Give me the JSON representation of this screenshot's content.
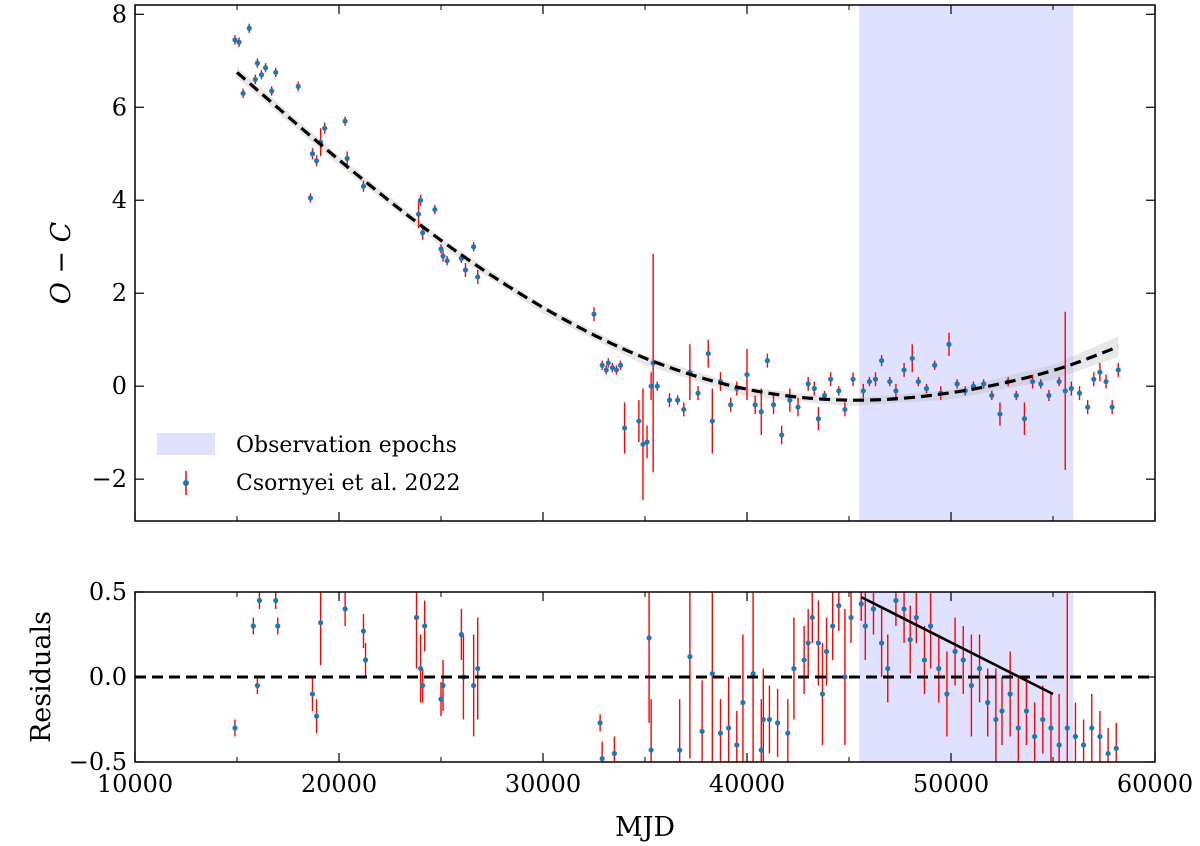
{
  "chart_data": [
    {
      "type": "scatter",
      "panel": "top",
      "xlabel": "",
      "ylabel": "O − C",
      "xlim": [
        10000,
        60000
      ],
      "ylim": [
        -2.9,
        8.2
      ],
      "xticks": [
        10000,
        20000,
        30000,
        40000,
        50000,
        60000
      ],
      "yticks": [
        -2,
        0,
        2,
        4,
        6,
        8
      ],
      "ytick_labels": [
        "−2",
        "0",
        "2",
        "4",
        "6",
        "8"
      ],
      "observation_epochs": {
        "start": 45500,
        "end": 56000,
        "color": "#e0e0ff",
        "label": "Observation epochs"
      },
      "legend": {
        "position": "lower-left",
        "entries": [
          "Observation epochs",
          "Csornyei et al. 2022"
        ]
      },
      "fit": {
        "model": "quadratic",
        "points": [
          [
            15000,
            6.75
          ],
          [
            20000,
            4.85
          ],
          [
            25000,
            3.1
          ],
          [
            30000,
            1.65
          ],
          [
            35000,
            0.55
          ],
          [
            40000,
            -0.12
          ],
          [
            45000,
            -0.35
          ],
          [
            50000,
            -0.18
          ],
          [
            55000,
            0.3
          ],
          [
            58200,
            0.85
          ]
        ],
        "band_halfwidth": [
          0.12,
          0.1,
          0.09,
          0.09,
          0.1,
          0.1,
          0.08,
          0.1,
          0.16,
          0.22
        ],
        "line_color": "#000000",
        "band_color": "#bbbbbb"
      },
      "series": [
        {
          "name": "Csornyei et al. 2022",
          "marker_color": "#1f77b4",
          "errorbar_color": "#ff0000",
          "points": [
            [
              14900,
              7.45,
              0.1
            ],
            [
              15100,
              7.4,
              0.1
            ],
            [
              15300,
              6.3,
              0.1
            ],
            [
              15600,
              7.7,
              0.1
            ],
            [
              15900,
              6.6,
              0.1
            ],
            [
              16000,
              6.95,
              0.1
            ],
            [
              16200,
              6.7,
              0.1
            ],
            [
              16400,
              6.85,
              0.1
            ],
            [
              16700,
              6.35,
              0.1
            ],
            [
              16900,
              6.75,
              0.1
            ],
            [
              18000,
              6.45,
              0.1
            ],
            [
              18700,
              5.0,
              0.12
            ],
            [
              18900,
              4.85,
              0.12
            ],
            [
              19100,
              5.25,
              0.3
            ],
            [
              19300,
              5.55,
              0.12
            ],
            [
              18600,
              4.05,
              0.1
            ],
            [
              20300,
              5.7,
              0.1
            ],
            [
              20400,
              4.9,
              0.15
            ],
            [
              21200,
              4.3,
              0.12
            ],
            [
              23900,
              3.7,
              0.3
            ],
            [
              24100,
              3.3,
              0.15
            ],
            [
              24000,
              4.0,
              0.12
            ],
            [
              24700,
              3.8,
              0.1
            ],
            [
              25000,
              2.95,
              0.1
            ],
            [
              25100,
              2.8,
              0.12
            ],
            [
              25300,
              2.7,
              0.1
            ],
            [
              26000,
              2.75,
              0.1
            ],
            [
              26200,
              2.5,
              0.15
            ],
            [
              26600,
              3.0,
              0.1
            ],
            [
              26800,
              2.35,
              0.15
            ],
            [
              32500,
              1.55,
              0.15
            ],
            [
              32900,
              0.45,
              0.1
            ],
            [
              33100,
              0.35,
              0.1
            ],
            [
              33200,
              0.5,
              0.1
            ],
            [
              33400,
              0.4,
              0.1
            ],
            [
              33600,
              0.35,
              0.1
            ],
            [
              33800,
              0.45,
              0.1
            ],
            [
              34000,
              -0.9,
              0.55
            ],
            [
              34700,
              -0.75,
              0.45
            ],
            [
              34900,
              -1.25,
              1.2
            ],
            [
              35100,
              -1.2,
              0.35
            ],
            [
              35300,
              0.0,
              0.3
            ],
            [
              35400,
              0.5,
              2.35
            ],
            [
              35600,
              0.0,
              0.1
            ],
            [
              36200,
              -0.3,
              0.15
            ],
            [
              36600,
              -0.3,
              0.1
            ],
            [
              36900,
              -0.5,
              0.15
            ],
            [
              37200,
              0.3,
              0.6
            ],
            [
              37600,
              -0.15,
              0.15
            ],
            [
              38100,
              0.7,
              0.3
            ],
            [
              38300,
              -0.75,
              0.7
            ],
            [
              38700,
              0.1,
              0.2
            ],
            [
              39200,
              -0.4,
              0.15
            ],
            [
              39500,
              -0.05,
              0.15
            ],
            [
              40000,
              0.25,
              0.55
            ],
            [
              40400,
              -0.4,
              0.2
            ],
            [
              40700,
              -0.55,
              0.5
            ],
            [
              41000,
              0.55,
              0.15
            ],
            [
              41300,
              -0.4,
              0.2
            ],
            [
              41700,
              -1.05,
              0.2
            ],
            [
              42100,
              -0.3,
              0.25
            ],
            [
              42500,
              -0.45,
              0.2
            ],
            [
              43000,
              0.05,
              0.15
            ],
            [
              43300,
              -0.05,
              0.15
            ],
            [
              43500,
              -0.7,
              0.25
            ],
            [
              43800,
              -0.2,
              0.1
            ],
            [
              44100,
              0.15,
              0.15
            ],
            [
              44500,
              -0.1,
              0.1
            ],
            [
              44800,
              -0.5,
              0.15
            ],
            [
              45200,
              0.15,
              0.15
            ],
            [
              45700,
              -0.1,
              0.15
            ],
            [
              46000,
              0.1,
              0.1
            ],
            [
              46300,
              0.15,
              0.15
            ],
            [
              46600,
              0.55,
              0.12
            ],
            [
              47000,
              0.1,
              0.1
            ],
            [
              47300,
              -0.1,
              0.15
            ],
            [
              47700,
              0.35,
              0.15
            ],
            [
              48100,
              0.6,
              0.3
            ],
            [
              48400,
              0.1,
              0.1
            ],
            [
              48800,
              -0.05,
              0.1
            ],
            [
              49200,
              0.45,
              0.1
            ],
            [
              49500,
              -0.15,
              0.15
            ],
            [
              49900,
              0.9,
              0.25
            ],
            [
              50300,
              0.05,
              0.1
            ],
            [
              50700,
              -0.1,
              0.1
            ],
            [
              51100,
              0.0,
              0.1
            ],
            [
              51600,
              0.05,
              0.1
            ],
            [
              52000,
              -0.2,
              0.1
            ],
            [
              52400,
              -0.6,
              0.25
            ],
            [
              52800,
              0.1,
              0.1
            ],
            [
              53200,
              -0.2,
              0.1
            ],
            [
              53600,
              -0.7,
              0.35
            ],
            [
              54000,
              0.1,
              0.15
            ],
            [
              54400,
              0.05,
              0.1
            ],
            [
              54800,
              -0.2,
              0.12
            ],
            [
              55300,
              0.1,
              0.1
            ],
            [
              55600,
              -0.1,
              1.7
            ],
            [
              55900,
              -0.05,
              0.15
            ],
            [
              56300,
              -0.15,
              0.15
            ],
            [
              56700,
              -0.45,
              0.15
            ],
            [
              57000,
              0.15,
              0.15
            ],
            [
              57300,
              0.3,
              0.2
            ],
            [
              57600,
              0.1,
              0.15
            ],
            [
              57900,
              -0.45,
              0.15
            ],
            [
              58200,
              0.35,
              0.15
            ]
          ]
        }
      ]
    },
    {
      "type": "scatter",
      "panel": "bottom",
      "xlabel": "MJD",
      "ylabel": "Residuals",
      "xlim": [
        10000,
        60000
      ],
      "ylim": [
        -0.5,
        0.5
      ],
      "xticks": [
        10000,
        20000,
        30000,
        40000,
        50000,
        60000
      ],
      "xtick_labels": [
        "10000",
        "20000",
        "30000",
        "40000",
        "50000",
        "60000"
      ],
      "yticks": [
        -0.5,
        0.0,
        0.5
      ],
      "ytick_labels": [
        "−0.5",
        "0.0",
        "0.5"
      ],
      "observation_epochs": {
        "start": 45500,
        "end": 56000,
        "color": "#e0e0ff"
      },
      "zero_line": 0.0,
      "trend_line": {
        "x": [
          45600,
          55000
        ],
        "y": [
          0.47,
          -0.1
        ],
        "color": "#000000"
      },
      "series": [
        {
          "name": "Residuals",
          "marker_color": "#1f77b4",
          "errorbar_color": "#ff0000",
          "points": [
            [
              14900,
              -0.3,
              0.05
            ],
            [
              15800,
              0.3,
              0.05
            ],
            [
              16000,
              -0.05,
              0.05
            ],
            [
              16100,
              0.45,
              0.05
            ],
            [
              16900,
              0.45,
              0.05
            ],
            [
              17000,
              0.3,
              0.05
            ],
            [
              18700,
              -0.1,
              0.1
            ],
            [
              18900,
              -0.23,
              0.1
            ],
            [
              19100,
              0.32,
              0.25
            ],
            [
              20300,
              0.4,
              0.1
            ],
            [
              21200,
              0.27,
              0.1
            ],
            [
              21300,
              0.1,
              0.1
            ],
            [
              23800,
              0.35,
              0.3
            ],
            [
              24000,
              0.05,
              0.2
            ],
            [
              24100,
              -0.05,
              0.1
            ],
            [
              24200,
              0.3,
              0.15
            ],
            [
              25000,
              -0.13,
              0.1
            ],
            [
              25100,
              -0.05,
              0.15
            ],
            [
              26000,
              0.25,
              0.15
            ],
            [
              26100,
              0.0,
              0.25
            ],
            [
              26600,
              -0.05,
              0.3
            ],
            [
              26800,
              0.05,
              0.3
            ],
            [
              32800,
              -0.27,
              0.05
            ],
            [
              32900,
              -0.48,
              0.1
            ],
            [
              33500,
              -0.45,
              0.1
            ],
            [
              35200,
              0.23,
              0.5
            ],
            [
              35300,
              -0.43,
              0.3
            ],
            [
              36700,
              -0.43,
              0.3
            ],
            [
              37200,
              0.12,
              0.6
            ],
            [
              37800,
              -0.32,
              0.3
            ],
            [
              38300,
              0.02,
              0.6
            ],
            [
              38700,
              -0.33,
              0.2
            ],
            [
              39100,
              -0.3,
              0.3
            ],
            [
              39500,
              -0.4,
              0.2
            ],
            [
              39800,
              -0.15,
              0.4
            ],
            [
              40300,
              0.02,
              0.6
            ],
            [
              40700,
              -0.43,
              0.3
            ],
            [
              40800,
              -0.25,
              0.3
            ],
            [
              41100,
              -0.25,
              0.2
            ],
            [
              41500,
              -0.27,
              0.2
            ],
            [
              42000,
              -0.33,
              0.2
            ],
            [
              42300,
              0.05,
              0.3
            ],
            [
              42800,
              0.1,
              0.2
            ],
            [
              43000,
              0.2,
              0.2
            ],
            [
              43200,
              0.35,
              0.15
            ],
            [
              43500,
              0.2,
              0.25
            ],
            [
              43700,
              -0.1,
              0.3
            ],
            [
              43900,
              0.15,
              0.2
            ],
            [
              44200,
              0.3,
              0.2
            ],
            [
              44500,
              0.42,
              0.15
            ],
            [
              44800,
              0.0,
              0.4
            ],
            [
              45100,
              0.35,
              0.15
            ],
            [
              45600,
              0.43,
              0.1
            ],
            [
              45800,
              0.3,
              0.2
            ],
            [
              46200,
              0.4,
              0.15
            ],
            [
              46600,
              0.2,
              0.2
            ],
            [
              46900,
              0.05,
              0.2
            ],
            [
              47300,
              0.45,
              0.15
            ],
            [
              47700,
              0.4,
              0.2
            ],
            [
              48000,
              0.22,
              0.2
            ],
            [
              48300,
              0.35,
              0.15
            ],
            [
              48700,
              0.1,
              0.2
            ],
            [
              49000,
              0.3,
              0.25
            ],
            [
              49400,
              0.05,
              0.2
            ],
            [
              49800,
              -0.1,
              0.25
            ],
            [
              50200,
              0.15,
              0.2
            ],
            [
              50600,
              0.1,
              0.2
            ],
            [
              51000,
              -0.05,
              0.3
            ],
            [
              51400,
              0.05,
              0.2
            ],
            [
              51800,
              -0.15,
              0.2
            ],
            [
              52200,
              -0.25,
              0.3
            ],
            [
              52500,
              -0.2,
              0.2
            ],
            [
              52900,
              -0.1,
              0.25
            ],
            [
              53300,
              -0.3,
              0.3
            ],
            [
              53700,
              -0.2,
              0.2
            ],
            [
              54100,
              -0.35,
              0.2
            ],
            [
              54500,
              -0.25,
              0.2
            ],
            [
              54900,
              -0.3,
              0.2
            ],
            [
              55300,
              -0.4,
              0.3
            ],
            [
              55700,
              -0.3,
              0.8
            ],
            [
              56100,
              -0.35,
              0.2
            ],
            [
              56500,
              -0.4,
              0.15
            ],
            [
              56900,
              -0.3,
              0.2
            ],
            [
              57300,
              -0.35,
              0.15
            ],
            [
              57700,
              -0.45,
              0.15
            ],
            [
              58100,
              -0.42,
              0.15
            ]
          ]
        }
      ]
    }
  ]
}
